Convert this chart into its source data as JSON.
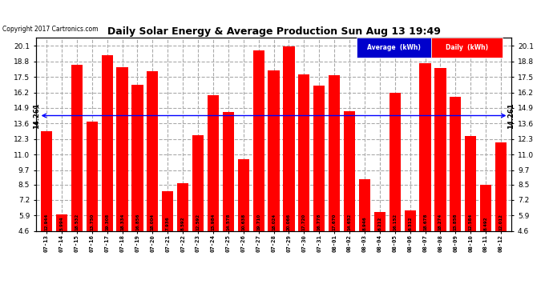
{
  "title": "Daily Solar Energy & Average Production Sun Aug 13 19:49",
  "copyright": "Copyright 2017 Cartronics.com",
  "average_value": 14.261,
  "average_label": "14.261",
  "bar_color": "#FF0000",
  "average_line_color": "#0000FF",
  "background_color": "#FFFFFF",
  "plot_bg_color": "#FFFFFF",
  "legend_avg_bg": "#0000CC",
  "legend_daily_bg": "#FF0000",
  "legend_avg_text": "Average  (kWh)",
  "legend_daily_text": "Daily  (kWh)",
  "ylim_min": 4.6,
  "ylim_max": 20.8,
  "yticks": [
    4.6,
    5.9,
    7.2,
    8.5,
    9.7,
    11.0,
    12.3,
    13.6,
    14.9,
    16.2,
    17.5,
    18.8,
    20.1
  ],
  "categories": [
    "07-13",
    "07-14",
    "07-15",
    "07-16",
    "07-17",
    "07-18",
    "07-19",
    "07-20",
    "07-21",
    "07-22",
    "07-23",
    "07-24",
    "07-25",
    "07-26",
    "07-27",
    "07-28",
    "07-29",
    "07-30",
    "07-31",
    "08-01",
    "08-02",
    "08-03",
    "08-04",
    "08-05",
    "08-06",
    "08-07",
    "08-08",
    "08-09",
    "08-10",
    "08-11",
    "08-12"
  ],
  "values": [
    12.944,
    5.994,
    18.532,
    13.75,
    19.308,
    18.334,
    16.856,
    18.004,
    7.936,
    8.592,
    12.592,
    15.984,
    14.578,
    10.638,
    19.71,
    18.024,
    20.066,
    17.72,
    16.778,
    17.67,
    14.652,
    8.946,
    6.212,
    16.152,
    6.312,
    18.678,
    18.274,
    15.858,
    12.584,
    8.492,
    12.012
  ],
  "value_labels": [
    "12.944",
    "5.994",
    "18.532",
    "13.750",
    "19.308",
    "18.334",
    "16.856",
    "18.004",
    "7.936",
    "8.592",
    "12.592",
    "15.984",
    "14.578",
    "10.638",
    "19.710",
    "18.024",
    "20.066",
    "17.720",
    "16.778",
    "17.670",
    "14.652",
    "8.946",
    "6.212",
    "16.152",
    "6.312",
    "18.678",
    "18.274",
    "15.858",
    "12.584",
    "8.492",
    "12.012"
  ],
  "grid_color": "#AAAAAA",
  "grid_style": "--",
  "bar_width": 0.75
}
